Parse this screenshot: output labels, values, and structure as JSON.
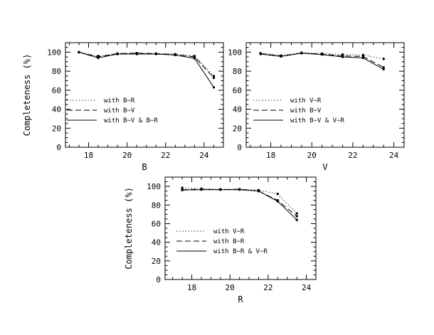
{
  "chart_data": [
    {
      "type": "line",
      "xlabel": "B",
      "ylabel": "Completeness (%)",
      "xlim": [
        16.8,
        25.0
      ],
      "ylim": [
        0,
        110
      ],
      "xticks": [
        18,
        20,
        22,
        24
      ],
      "yticks": [
        0,
        20,
        40,
        60,
        80,
        100
      ],
      "legend_placement": "lower-left",
      "series": [
        {
          "name": "with B−R",
          "style": "dotted",
          "x": [
            17.5,
            18.5,
            19.5,
            20.5,
            21.5,
            22.5,
            23.5,
            24.5
          ],
          "y": [
            100,
            96,
            98.5,
            99,
            98.5,
            98,
            96,
            75
          ]
        },
        {
          "name": "with B−V",
          "style": "dashed",
          "x": [
            17.5,
            18.5,
            19.5,
            20.5,
            21.5,
            22.5,
            23.5,
            24.5
          ],
          "y": [
            100,
            95,
            98.5,
            99,
            98.5,
            97.5,
            95,
            73
          ]
        },
        {
          "name": "with B−V & B−R",
          "style": "solid",
          "x": [
            17.5,
            18.5,
            19.5,
            20.5,
            21.5,
            22.5,
            23.5,
            24.5
          ],
          "y": [
            100,
            94,
            98,
            98,
            98,
            97,
            93.5,
            63
          ]
        }
      ]
    },
    {
      "type": "line",
      "xlabel": "V",
      "ylabel": "",
      "xlim": [
        16.8,
        24.5
      ],
      "ylim": [
        0,
        110
      ],
      "xticks": [
        18,
        20,
        22,
        24
      ],
      "yticks": [
        0,
        20,
        40,
        60,
        80,
        100
      ],
      "legend_placement": "lower-left",
      "series": [
        {
          "name": "with V−R",
          "style": "dotted",
          "x": [
            17.5,
            18.5,
            19.5,
            20.5,
            21.5,
            22.5,
            23.5
          ],
          "y": [
            99,
            96.5,
            99.5,
            98.5,
            97.5,
            97,
            93
          ]
        },
        {
          "name": "with B−V",
          "style": "dashed",
          "x": [
            17.5,
            18.5,
            19.5,
            20.5,
            21.5,
            22.5,
            23.5
          ],
          "y": [
            98.5,
            96,
            99,
            98,
            96,
            95.5,
            84
          ]
        },
        {
          "name": "with B−V & V−R",
          "style": "solid",
          "x": [
            17.5,
            18.5,
            19.5,
            20.5,
            21.5,
            22.5,
            23.5
          ],
          "y": [
            98,
            95.5,
            99,
            97.5,
            95,
            94,
            82
          ]
        }
      ]
    },
    {
      "type": "line",
      "xlabel": "R",
      "ylabel": "Completeness (%)",
      "xlim": [
        16.6,
        24.5
      ],
      "ylim": [
        0,
        110
      ],
      "xticks": [
        18,
        20,
        22,
        24
      ],
      "yticks": [
        0,
        20,
        40,
        60,
        80,
        100
      ],
      "legend_placement": "lower-left",
      "series": [
        {
          "name": "with V−R",
          "style": "dotted",
          "x": [
            17.5,
            18.5,
            19.5,
            20.5,
            21.5,
            22.5,
            23.5
          ],
          "y": [
            98.5,
            97.5,
            97,
            97,
            96,
            92,
            71
          ]
        },
        {
          "name": "with B−R",
          "style": "dashed",
          "x": [
            17.5,
            18.5,
            19.5,
            20.5,
            21.5,
            22.5,
            23.5
          ],
          "y": [
            96.5,
            97,
            96.5,
            97,
            95,
            85,
            68
          ]
        },
        {
          "name": "with B−R & V−R",
          "style": "solid",
          "x": [
            17.5,
            18.5,
            19.5,
            20.5,
            21.5,
            22.5,
            23.5
          ],
          "y": [
            96,
            96.5,
            96.5,
            96.5,
            95,
            84,
            64
          ]
        }
      ]
    }
  ]
}
